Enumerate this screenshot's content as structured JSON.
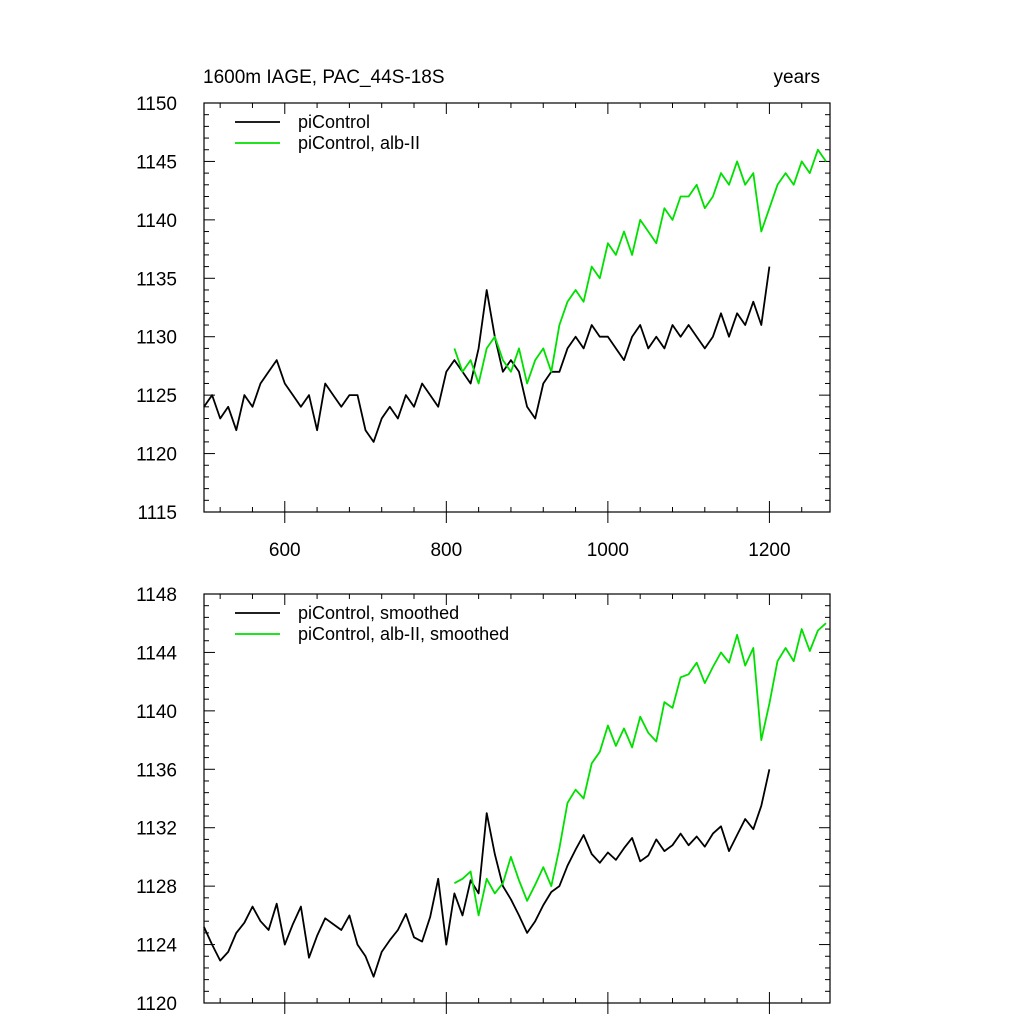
{
  "chart_data": [
    {
      "type": "line",
      "title_left": "1600m IAGE, PAC_44S-18S",
      "title_right": "years",
      "xlim": [
        500,
        1275
      ],
      "ylim": [
        1115,
        1150
      ],
      "xticks": [
        600,
        800,
        1000,
        1200
      ],
      "yticks": [
        1115,
        1120,
        1125,
        1130,
        1135,
        1140,
        1145,
        1150
      ],
      "show_xtick_labels": true,
      "grid": false,
      "legend_position": "top-left",
      "series": [
        {
          "name": "piControl",
          "color": "#000000",
          "x": [
            500,
            510,
            520,
            530,
            540,
            550,
            560,
            570,
            580,
            590,
            600,
            610,
            620,
            630,
            640,
            650,
            660,
            670,
            680,
            690,
            700,
            710,
            720,
            730,
            740,
            750,
            760,
            770,
            780,
            790,
            800,
            810,
            820,
            830,
            840,
            850,
            860,
            870,
            880,
            890,
            900,
            910,
            920,
            930,
            940,
            950,
            960,
            970,
            980,
            990,
            1000,
            1010,
            1020,
            1030,
            1040,
            1050,
            1060,
            1070,
            1080,
            1090,
            1100,
            1110,
            1120,
            1130,
            1140,
            1150,
            1160,
            1170,
            1180,
            1190,
            1200
          ],
          "values": [
            1124,
            1125,
            1123,
            1124,
            1122,
            1125,
            1124,
            1126,
            1127,
            1128,
            1126,
            1125,
            1124,
            1125,
            1122,
            1126,
            1125,
            1124,
            1125,
            1125,
            1122,
            1121,
            1123,
            1124,
            1123,
            1125,
            1124,
            1126,
            1125,
            1124,
            1127,
            1128,
            1127,
            1126,
            1129,
            1134,
            1130,
            1127,
            1128,
            1127,
            1124,
            1123,
            1126,
            1127,
            1127,
            1129,
            1130,
            1129,
            1131,
            1130,
            1130,
            1129,
            1128,
            1130,
            1131,
            1129,
            1130,
            1129,
            1131,
            1130,
            1131,
            1130,
            1129,
            1130,
            1132,
            1130,
            1132,
            1131,
            1133,
            1131,
            1136
          ]
        },
        {
          "name": "piControl, alb-II",
          "color": "#00e000",
          "x": [
            810,
            820,
            830,
            840,
            850,
            860,
            870,
            880,
            890,
            900,
            910,
            920,
            930,
            940,
            950,
            960,
            970,
            980,
            990,
            1000,
            1010,
            1020,
            1030,
            1040,
            1050,
            1060,
            1070,
            1080,
            1090,
            1100,
            1110,
            1120,
            1130,
            1140,
            1150,
            1160,
            1170,
            1180,
            1190,
            1200,
            1210,
            1220,
            1230,
            1240,
            1250,
            1260,
            1270
          ],
          "values": [
            1129,
            1127,
            1128,
            1126,
            1129,
            1130,
            1128,
            1127,
            1129,
            1126,
            1128,
            1129,
            1127,
            1131,
            1133,
            1134,
            1133,
            1136,
            1135,
            1138,
            1137,
            1139,
            1137,
            1140,
            1139,
            1138,
            1141,
            1140,
            1142,
            1142,
            1143,
            1141,
            1142,
            1144,
            1143,
            1145,
            1143,
            1144,
            1139,
            1141,
            1143,
            1144,
            1143,
            1145,
            1144,
            1146,
            1145
          ]
        }
      ]
    },
    {
      "type": "line",
      "xlim": [
        500,
        1275
      ],
      "ylim": [
        1120,
        1148
      ],
      "xticks": [
        600,
        800,
        1000,
        1200
      ],
      "yticks": [
        1120,
        1124,
        1128,
        1132,
        1136,
        1140,
        1144,
        1148
      ],
      "show_xtick_labels": false,
      "grid": false,
      "legend_position": "top-left",
      "series": [
        {
          "name": "piControl, smoothed",
          "color": "#000000",
          "x": [
            500,
            510,
            520,
            530,
            540,
            550,
            560,
            570,
            580,
            590,
            600,
            610,
            620,
            630,
            640,
            650,
            660,
            670,
            680,
            690,
            700,
            710,
            720,
            730,
            740,
            750,
            760,
            770,
            780,
            790,
            800,
            810,
            820,
            830,
            840,
            850,
            860,
            870,
            880,
            890,
            900,
            910,
            920,
            930,
            940,
            950,
            960,
            970,
            980,
            990,
            1000,
            1010,
            1020,
            1030,
            1040,
            1050,
            1060,
            1070,
            1080,
            1090,
            1100,
            1110,
            1120,
            1130,
            1140,
            1150,
            1160,
            1170,
            1180,
            1190,
            1200
          ],
          "values": [
            1125.2,
            1124.0,
            1122.9,
            1123.5,
            1124.8,
            1125.5,
            1126.6,
            1125.6,
            1125.0,
            1126.8,
            1124.0,
            1125.4,
            1126.6,
            1123.1,
            1124.6,
            1125.8,
            1125.4,
            1125.0,
            1126.0,
            1124.0,
            1123.2,
            1121.8,
            1123.5,
            1124.3,
            1125.0,
            1126.1,
            1124.5,
            1124.2,
            1125.9,
            1128.5,
            1124.0,
            1127.5,
            1126.0,
            1128.4,
            1127.5,
            1133.0,
            1130.2,
            1128.0,
            1127.1,
            1126.0,
            1124.8,
            1125.6,
            1126.7,
            1127.6,
            1128.0,
            1129.4,
            1130.5,
            1131.5,
            1130.2,
            1129.6,
            1130.3,
            1129.8,
            1130.6,
            1131.3,
            1129.7,
            1130.1,
            1131.2,
            1130.4,
            1130.8,
            1131.6,
            1130.8,
            1131.4,
            1130.7,
            1131.6,
            1132.1,
            1130.4,
            1131.5,
            1132.6,
            1131.9,
            1133.5,
            1136.0
          ]
        },
        {
          "name": "piControl, alb-II, smoothed",
          "color": "#00e000",
          "x": [
            810,
            820,
            830,
            840,
            850,
            860,
            870,
            880,
            890,
            900,
            910,
            920,
            930,
            940,
            950,
            960,
            970,
            980,
            990,
            1000,
            1010,
            1020,
            1030,
            1040,
            1050,
            1060,
            1070,
            1080,
            1090,
            1100,
            1110,
            1120,
            1130,
            1140,
            1150,
            1160,
            1170,
            1180,
            1190,
            1200,
            1210,
            1220,
            1230,
            1240,
            1250,
            1260,
            1270
          ],
          "values": [
            1128.2,
            1128.5,
            1129.0,
            1126.0,
            1128.5,
            1127.5,
            1128.2,
            1130.0,
            1128.4,
            1127.0,
            1128.1,
            1129.3,
            1128.0,
            1130.6,
            1133.7,
            1134.6,
            1134.0,
            1136.4,
            1137.2,
            1139.0,
            1137.6,
            1138.8,
            1137.5,
            1139.6,
            1138.5,
            1137.9,
            1140.6,
            1140.2,
            1142.3,
            1142.5,
            1143.3,
            1141.9,
            1143.0,
            1144.0,
            1143.3,
            1145.2,
            1143.1,
            1144.3,
            1138.0,
            1140.5,
            1143.4,
            1144.3,
            1143.4,
            1145.6,
            1144.1,
            1145.5,
            1146.0
          ]
        }
      ]
    }
  ]
}
